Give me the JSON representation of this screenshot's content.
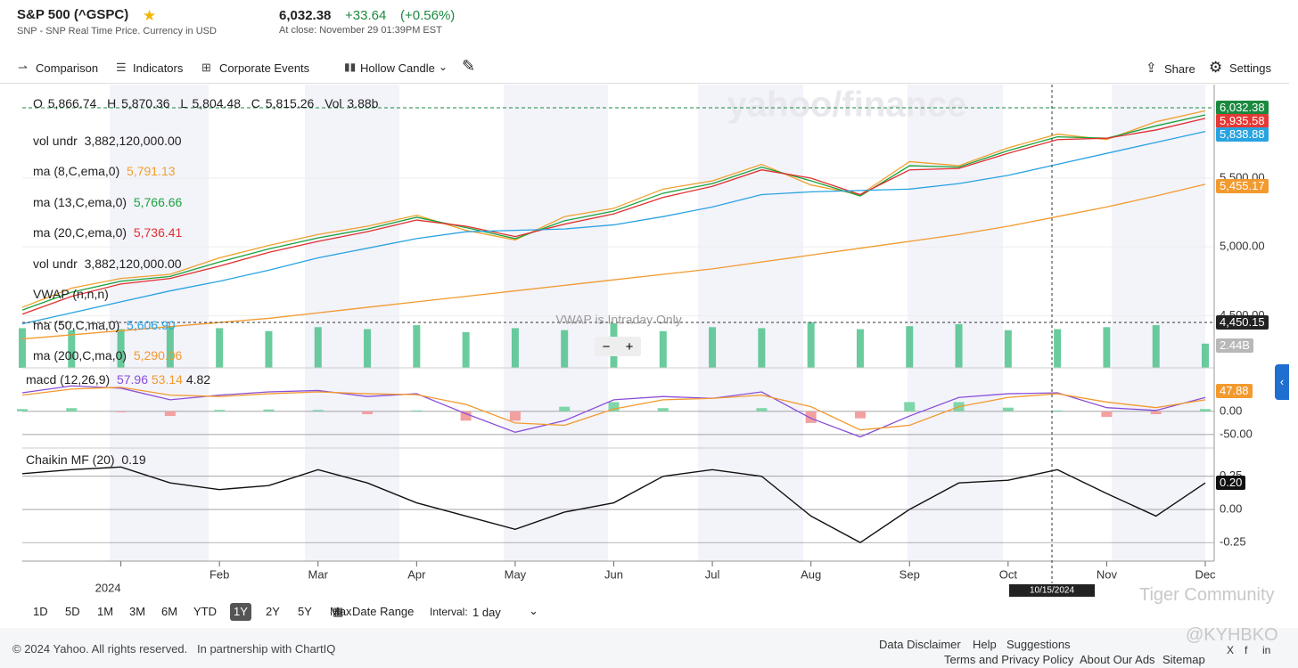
{
  "header": {
    "title": "S&P 500 (^GSPC)",
    "subtitle": "SNP - SNP Real Time Price. Currency in USD",
    "price": "6,032.38",
    "change": "+33.64",
    "change_pct": "(+0.56%)",
    "close_time": "At close: November 29 01:39PM EST"
  },
  "toolbar": {
    "items": [
      "Comparison",
      "Indicators",
      "Corporate Events",
      "Hollow Candle"
    ],
    "share": "Share",
    "settings": "Settings"
  },
  "watermark": "yahoo/finance",
  "ohlc": [
    "O 5,866.74",
    "H 5,870.36",
    "L 5,804.48",
    "C 5,815.26",
    "Vol 3.88b"
  ],
  "vol_undr": {
    "name": "vol undr",
    "value": "3,882,120,000.00"
  },
  "vwap": {
    "name": "VWAP (n,n,n)",
    "note": "VWAP is Intraday Only"
  },
  "zoom": [
    "−",
    "+"
  ],
  "price_boxes": [
    {
      "text": "6,032.38",
      "color": "#1a8a3e"
    },
    {
      "text": "5,935.58",
      "color": "#e53935"
    },
    {
      "text": "5,838.88",
      "color": "#29a3e0"
    },
    {
      "text": "5,455.17",
      "color": "#f29a2e"
    },
    {
      "text": "4,450.15",
      "color": "#222222"
    },
    {
      "text": "2.44B",
      "color": "#b8b8b8"
    },
    {
      "text": "47.88",
      "color": "#f29a2e"
    },
    {
      "text": "0.20",
      "color": "#111111"
    }
  ],
  "crosshair": {
    "date": "10/15/2024"
  },
  "chart_data": [
    {
      "type": "line",
      "categories": [
        null,
        null,
        "2024",
        null,
        "Feb",
        null,
        "Mar",
        null,
        "Apr",
        null,
        "May",
        null,
        "Jun",
        null,
        "Jul",
        null,
        "Aug",
        null,
        "Sep",
        null,
        "Oct",
        null,
        "Nov",
        null,
        "Dec"
      ],
      "ylim": [
        4120,
        6180
      ],
      "yticks": [
        {
          "value": 4500,
          "label": "4,500.00"
        },
        {
          "value": 5000,
          "label": "5,000.00"
        },
        {
          "value": 5500,
          "label": "5,500.00"
        }
      ],
      "series": [
        {
          "name": "ma (8,C,ema,0)",
          "legend_value": "5,791.13",
          "color": "#f0a02c",
          "values": [
            4560,
            4700,
            4770,
            4800,
            4920,
            5010,
            5090,
            5150,
            5230,
            5120,
            5050,
            5220,
            5280,
            5420,
            5480,
            5600,
            5450,
            5380,
            5620,
            5590,
            5720,
            5820,
            5780,
            5910,
            5990
          ]
        },
        {
          "name": "ma (13,C,ema,0)",
          "legend_value": "5,766.66",
          "color": "#1aa33c",
          "values": [
            4540,
            4670,
            4750,
            4785,
            4890,
            4985,
            5065,
            5130,
            5215,
            5140,
            5060,
            5190,
            5260,
            5390,
            5460,
            5580,
            5480,
            5370,
            5590,
            5580,
            5700,
            5800,
            5790,
            5880,
            5960
          ]
        },
        {
          "name": "ma (20,C,ema,0)",
          "legend_value": "5,736.41",
          "color": "#e03030",
          "values": [
            4510,
            4640,
            4730,
            4770,
            4860,
            4960,
            5040,
            5110,
            5195,
            5150,
            5075,
            5165,
            5240,
            5360,
            5440,
            5560,
            5500,
            5380,
            5560,
            5570,
            5680,
            5780,
            5790,
            5850,
            5935
          ]
        },
        {
          "name": "ma (50,C,ma,0)",
          "legend_value": "5,606.90",
          "color": "#29a3e0",
          "values": [
            4440,
            4520,
            4600,
            4680,
            4750,
            4830,
            4920,
            4990,
            5060,
            5110,
            5120,
            5130,
            5160,
            5220,
            5290,
            5380,
            5400,
            5410,
            5420,
            5460,
            5520,
            5600,
            5680,
            5760,
            5839
          ]
        },
        {
          "name": "ma (200,C,ma,0)",
          "legend_value": "5,290.06",
          "color": "#f29a2e",
          "values": [
            4330,
            4360,
            4390,
            4420,
            4450,
            4480,
            4520,
            4560,
            4600,
            4640,
            4680,
            4720,
            4760,
            4800,
            4840,
            4890,
            4940,
            4990,
            5040,
            5090,
            5150,
            5220,
            5290,
            5370,
            5455
          ]
        }
      ]
    },
    {
      "type": "bar",
      "color": "#2bb673",
      "ylim": [
        0,
        7
      ],
      "values": [
        4.0,
        3.8,
        3.9,
        4.2,
        4.0,
        3.7,
        4.1,
        3.9,
        4.3,
        3.6,
        4.0,
        3.8,
        4.5,
        3.7,
        4.1,
        4.0,
        4.6,
        3.9,
        4.2,
        4.4,
        3.8,
        3.9,
        4.1,
        4.3,
        2.44
      ]
    },
    {
      "type": "macd",
      "name": "macd (12,26,9)",
      "legend_values": [
        "57.96",
        "53.14",
        "4.82"
      ],
      "ylim": [
        -79,
        90
      ],
      "yticks": [
        {
          "value": 0,
          "label": "0.00"
        },
        {
          "value": -50,
          "label": "-50.00"
        }
      ],
      "up_color": "#7fd6a8",
      "down_color": "#f2a0a0",
      "series": [
        {
          "color": "#8a4fd8",
          "values": [
            40,
            55,
            50,
            25,
            35,
            42,
            45,
            32,
            38,
            -5,
            -45,
            -20,
            25,
            32,
            28,
            42,
            -15,
            -55,
            -10,
            30,
            38,
            40,
            8,
            2,
            30
          ]
        },
        {
          "color": "#f29a2e",
          "values": [
            35,
            48,
            52,
            35,
            32,
            38,
            42,
            38,
            36,
            15,
            -25,
            -30,
            5,
            25,
            28,
            35,
            10,
            -40,
            -30,
            10,
            30,
            38,
            20,
            8,
            25
          ]
        }
      ],
      "histogram": [
        5,
        7,
        -2,
        -10,
        3,
        4,
        3,
        -6,
        2,
        -20,
        -20,
        10,
        20,
        7,
        0,
        7,
        -25,
        -15,
        20,
        20,
        8,
        2,
        -12,
        -6,
        5
      ]
    },
    {
      "type": "line",
      "name": "Chaikin MF (20)",
      "legend_value": "0.19",
      "color": "#111111",
      "ylim": [
        -0.39,
        0.45
      ],
      "yticks": [
        {
          "value": 0.25,
          "label": "0.25"
        },
        {
          "value": 0,
          "label": "0.00"
        },
        {
          "value": -0.25,
          "label": "-0.25"
        }
      ],
      "values": [
        0.27,
        0.3,
        0.32,
        0.2,
        0.15,
        0.18,
        0.3,
        0.2,
        0.05,
        -0.05,
        -0.15,
        -0.02,
        0.05,
        0.25,
        0.3,
        0.25,
        -0.05,
        -0.25,
        0.0,
        0.2,
        0.22,
        0.3,
        0.12,
        -0.05,
        0.2
      ]
    }
  ],
  "ranges": [
    "1D",
    "5D",
    "1M",
    "3M",
    "6M",
    "YTD",
    "1Y",
    "2Y",
    "5Y",
    "Max"
  ],
  "active_range": 6,
  "date_range": "Date Range",
  "interval": {
    "label": "Interval:",
    "value": "1 day"
  },
  "footer": {
    "copyright": "© 2024 Yahoo. All rights reserved.",
    "partner": "In partnership with ChartIQ",
    "links": [
      "Data Disclaimer",
      "Help",
      "Suggestions"
    ],
    "links2": [
      "Terms and Privacy Policy",
      "About Our Ads",
      "Sitemap"
    ],
    "social": [
      "X",
      "f",
      "in"
    ]
  },
  "overlays": [
    "Tiger Community",
    "@KYHBKO"
  ]
}
